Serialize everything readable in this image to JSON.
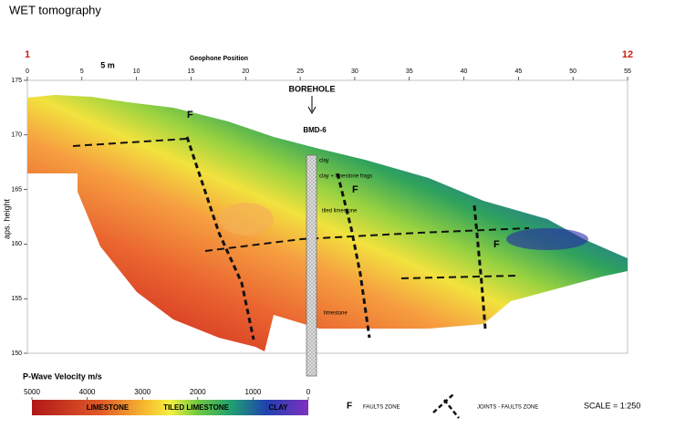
{
  "chart_data": {
    "type": "contour",
    "title": "WET tomography",
    "x_label": "Geophone Position",
    "y_label": "aps. height",
    "xlim": [
      0,
      55
    ],
    "xticks": [
      0,
      5,
      10,
      15,
      20,
      25,
      30,
      35,
      40,
      45,
      50,
      55
    ],
    "ylim": [
      150,
      175
    ],
    "yticks": [
      150,
      155,
      160,
      165,
      170,
      175
    ],
    "geophone_labels": [
      "1",
      "12"
    ],
    "scale_bar": "5 m",
    "borehole": {
      "label": "BOREHOLE",
      "name": "BMD-6",
      "layers": [
        "clay",
        "clay + limestone frags",
        "tiled limestone",
        "limestone"
      ]
    },
    "annotations": [
      "F",
      "F",
      "F"
    ],
    "colorbar": {
      "title": "P-Wave Velocity m/s",
      "lim": [
        5000,
        0
      ],
      "ticks": [
        5000,
        4000,
        3000,
        2000,
        1000,
        0
      ],
      "zones": [
        "LIMESTONE",
        "TILED LIMESTONE",
        "CLAY"
      ]
    },
    "legend": {
      "faults": "F",
      "faults_label": "FAULTS ZONE",
      "joints_label": "JOINTS - FAULTS ZONE",
      "scale": "SCALE = 1:250"
    }
  }
}
